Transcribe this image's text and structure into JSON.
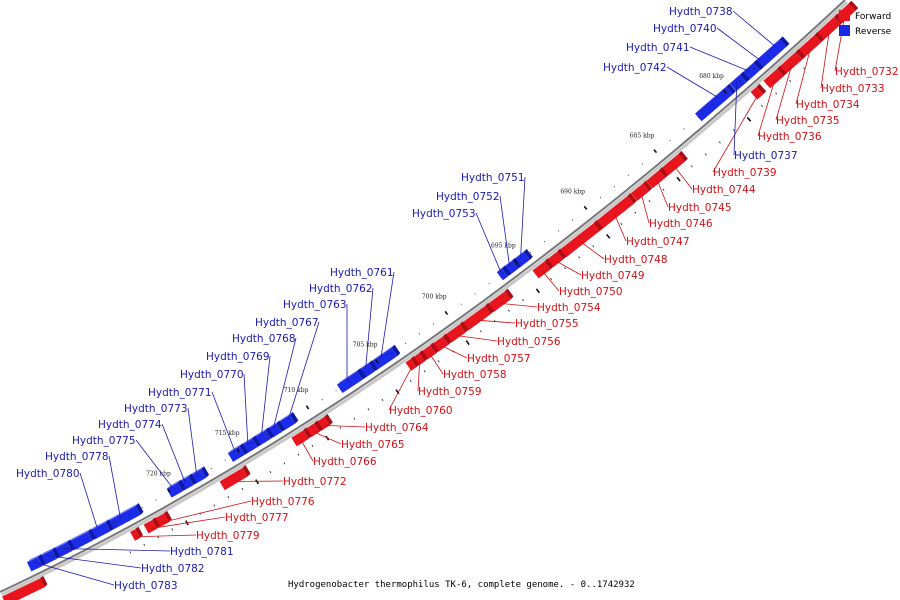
{
  "caption": "Hydrogenobacter thermophilus TK-6, complete genome. - 0..1742932",
  "legend": {
    "forward_label": "Forward",
    "reverse_label": "Reverse",
    "forward_color": "#e8141e",
    "reverse_color": "#1428e6"
  },
  "colors": {
    "forward_fill": "#e8141e",
    "forward_side": "#b00b12",
    "forward_top": "#f76c70",
    "reverse_fill": "#1c2be8",
    "reverse_side": "#0d18a8",
    "reverse_top": "#6f7af5",
    "backbone": "#777777",
    "forward_label": "#d01015",
    "reverse_label": "#1a1ab0"
  },
  "kbp_marks": [
    "680 kbp",
    "685 kbp",
    "690 kbp",
    "695 kbp",
    "700 kbp",
    "705 kbp",
    "710 kbp",
    "715 kbp",
    "720 kbp"
  ],
  "forward_genes": [
    "Hydth_0732",
    "Hydth_0733",
    "Hydth_0734",
    "Hydth_0735",
    "Hydth_0736",
    "Hydth_0739",
    "Hydth_0744",
    "Hydth_0745",
    "Hydth_0746",
    "Hydth_0747",
    "Hydth_0748",
    "Hydth_0749",
    "Hydth_0750",
    "Hydth_0754",
    "Hydth_0755",
    "Hydth_0756",
    "Hydth_0757",
    "Hydth_0758",
    "Hydth_0759",
    "Hydth_0760",
    "Hydth_0764",
    "Hydth_0765",
    "Hydth_0766",
    "Hydth_0772",
    "Hydth_0776",
    "Hydth_0777",
    "Hydth_0779"
  ],
  "reverse_genes": [
    "Hydth_0737",
    "Hydth_0738",
    "Hydth_0740",
    "Hydth_0741",
    "Hydth_0742",
    "Hydth_0751",
    "Hydth_0752",
    "Hydth_0753",
    "Hydth_0761",
    "Hydth_0762",
    "Hydth_0763",
    "Hydth_0767",
    "Hydth_0768",
    "Hydth_0769",
    "Hydth_0770",
    "Hydth_0771",
    "Hydth_0773",
    "Hydth_0774",
    "Hydth_0775",
    "Hydth_0778",
    "Hydth_0780",
    "Hydth_0781",
    "Hydth_0782",
    "Hydth_0783"
  ]
}
